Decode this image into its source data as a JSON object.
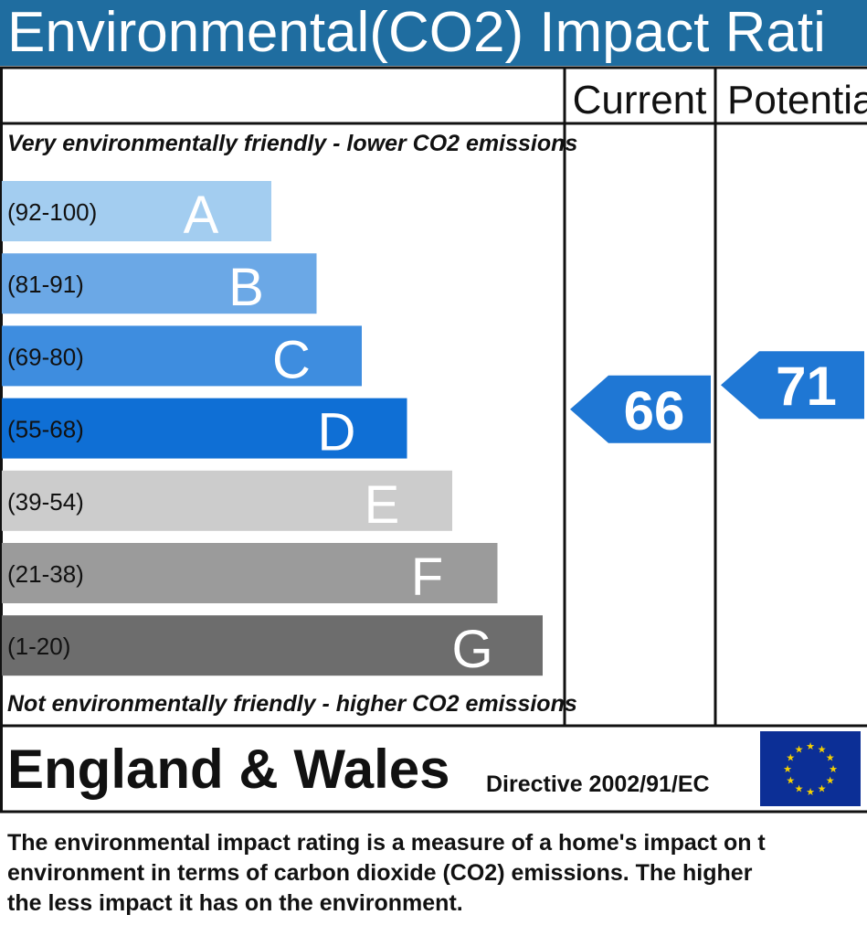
{
  "title": "Environmental(CO2) Impact Rati",
  "columns": {
    "current": "Current",
    "potential": "Potentia"
  },
  "top_note": "Very environmentally friendly - lower CO2 emissions",
  "bottom_note": "Not environmentally friendly - higher CO2 emissions",
  "region": "England & Wales",
  "directive": "Directive 2002/91/EC",
  "footer_lines": [
    "The environmental impact rating is a measure of a home's impact on t",
    "environment in terms of carbon dioxide (CO2) emissions. The higher",
    "the less impact it has on the environment."
  ],
  "colors": {
    "title_bg": "#1f6da0",
    "eu_flag": "#0c2f96",
    "eu_star": "#f6d200",
    "arrow": "#1f77d4"
  },
  "chart_data": {
    "type": "bar",
    "categories": [
      "A",
      "B",
      "C",
      "D",
      "E",
      "F",
      "G"
    ],
    "ranges": [
      "(92-100)",
      "(81-91)",
      "(69-80)",
      "(55-68)",
      "(39-54)",
      "(21-38)",
      "(1-20)"
    ],
    "band_colors": [
      "#a3cdf0",
      "#6ba8e6",
      "#3e8ddf",
      "#0f6fd5",
      "#cccccc",
      "#9b9b9b",
      "#6d6d6d"
    ],
    "current": 66,
    "potential": 71
  }
}
